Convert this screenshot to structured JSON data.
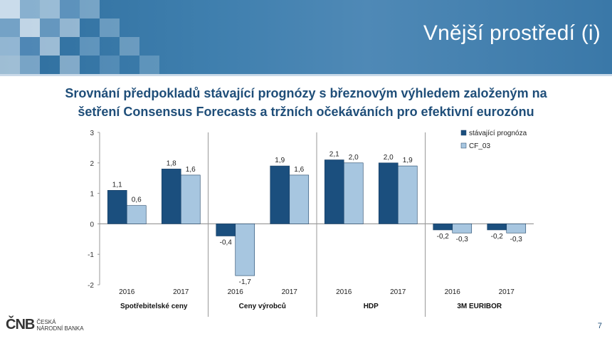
{
  "header": {
    "title": "Vnější prostředí (i)"
  },
  "subtitle": {
    "line1": "Srovnání předpokladů stávající prognózy s březnovým výhledem založeným na",
    "line2": "šetření Consensus Forecasts a tržních očekáváních pro efektivní eurozónu"
  },
  "footer": {
    "logo": "ČNB",
    "logo_sub1": "ČESKÁ",
    "logo_sub2": "NÁRODNÍ BANKA",
    "page": "7"
  },
  "colors": {
    "series1": "#1b4f7e",
    "series2": "#a7c6e0",
    "header": "#3a78a8",
    "title": "#1f4e79"
  },
  "chart_data": {
    "type": "bar",
    "ylim": [
      -2,
      3
    ],
    "yticks": [
      -2,
      -1,
      0,
      1,
      2,
      3
    ],
    "legend_position": "top-right",
    "series": [
      {
        "name": "stávající prognóza",
        "color": "#1b4f7e"
      },
      {
        "name": "CF_03",
        "color": "#a7c6e0"
      }
    ],
    "groups": [
      {
        "label": "Spotřebitelské ceny",
        "years": [
          "2016",
          "2017"
        ],
        "values": [
          [
            1.1,
            0.6
          ],
          [
            1.8,
            1.6
          ]
        ],
        "labels": [
          [
            "1,1",
            "0,6"
          ],
          [
            "1,8",
            "1,6"
          ]
        ]
      },
      {
        "label": "Ceny výrobců",
        "years": [
          "2016",
          "2017"
        ],
        "values": [
          [
            -0.4,
            -1.7
          ],
          [
            1.9,
            1.6
          ]
        ],
        "labels": [
          [
            "-0,4",
            "-1,7"
          ],
          [
            "1,9",
            "1,6"
          ]
        ]
      },
      {
        "label": "HDP",
        "years": [
          "2016",
          "2017"
        ],
        "values": [
          [
            2.1,
            2.0
          ],
          [
            2.0,
            1.9
          ]
        ],
        "labels": [
          [
            "2,1",
            "2,0"
          ],
          [
            "2,0",
            "1,9"
          ]
        ]
      },
      {
        "label": "3M EURIBOR",
        "years": [
          "2016",
          "2017"
        ],
        "values": [
          [
            -0.2,
            -0.3
          ],
          [
            -0.2,
            -0.3
          ]
        ],
        "labels": [
          [
            "-0,2",
            "-0,3"
          ],
          [
            "-0,2",
            "-0,3"
          ]
        ]
      }
    ]
  }
}
